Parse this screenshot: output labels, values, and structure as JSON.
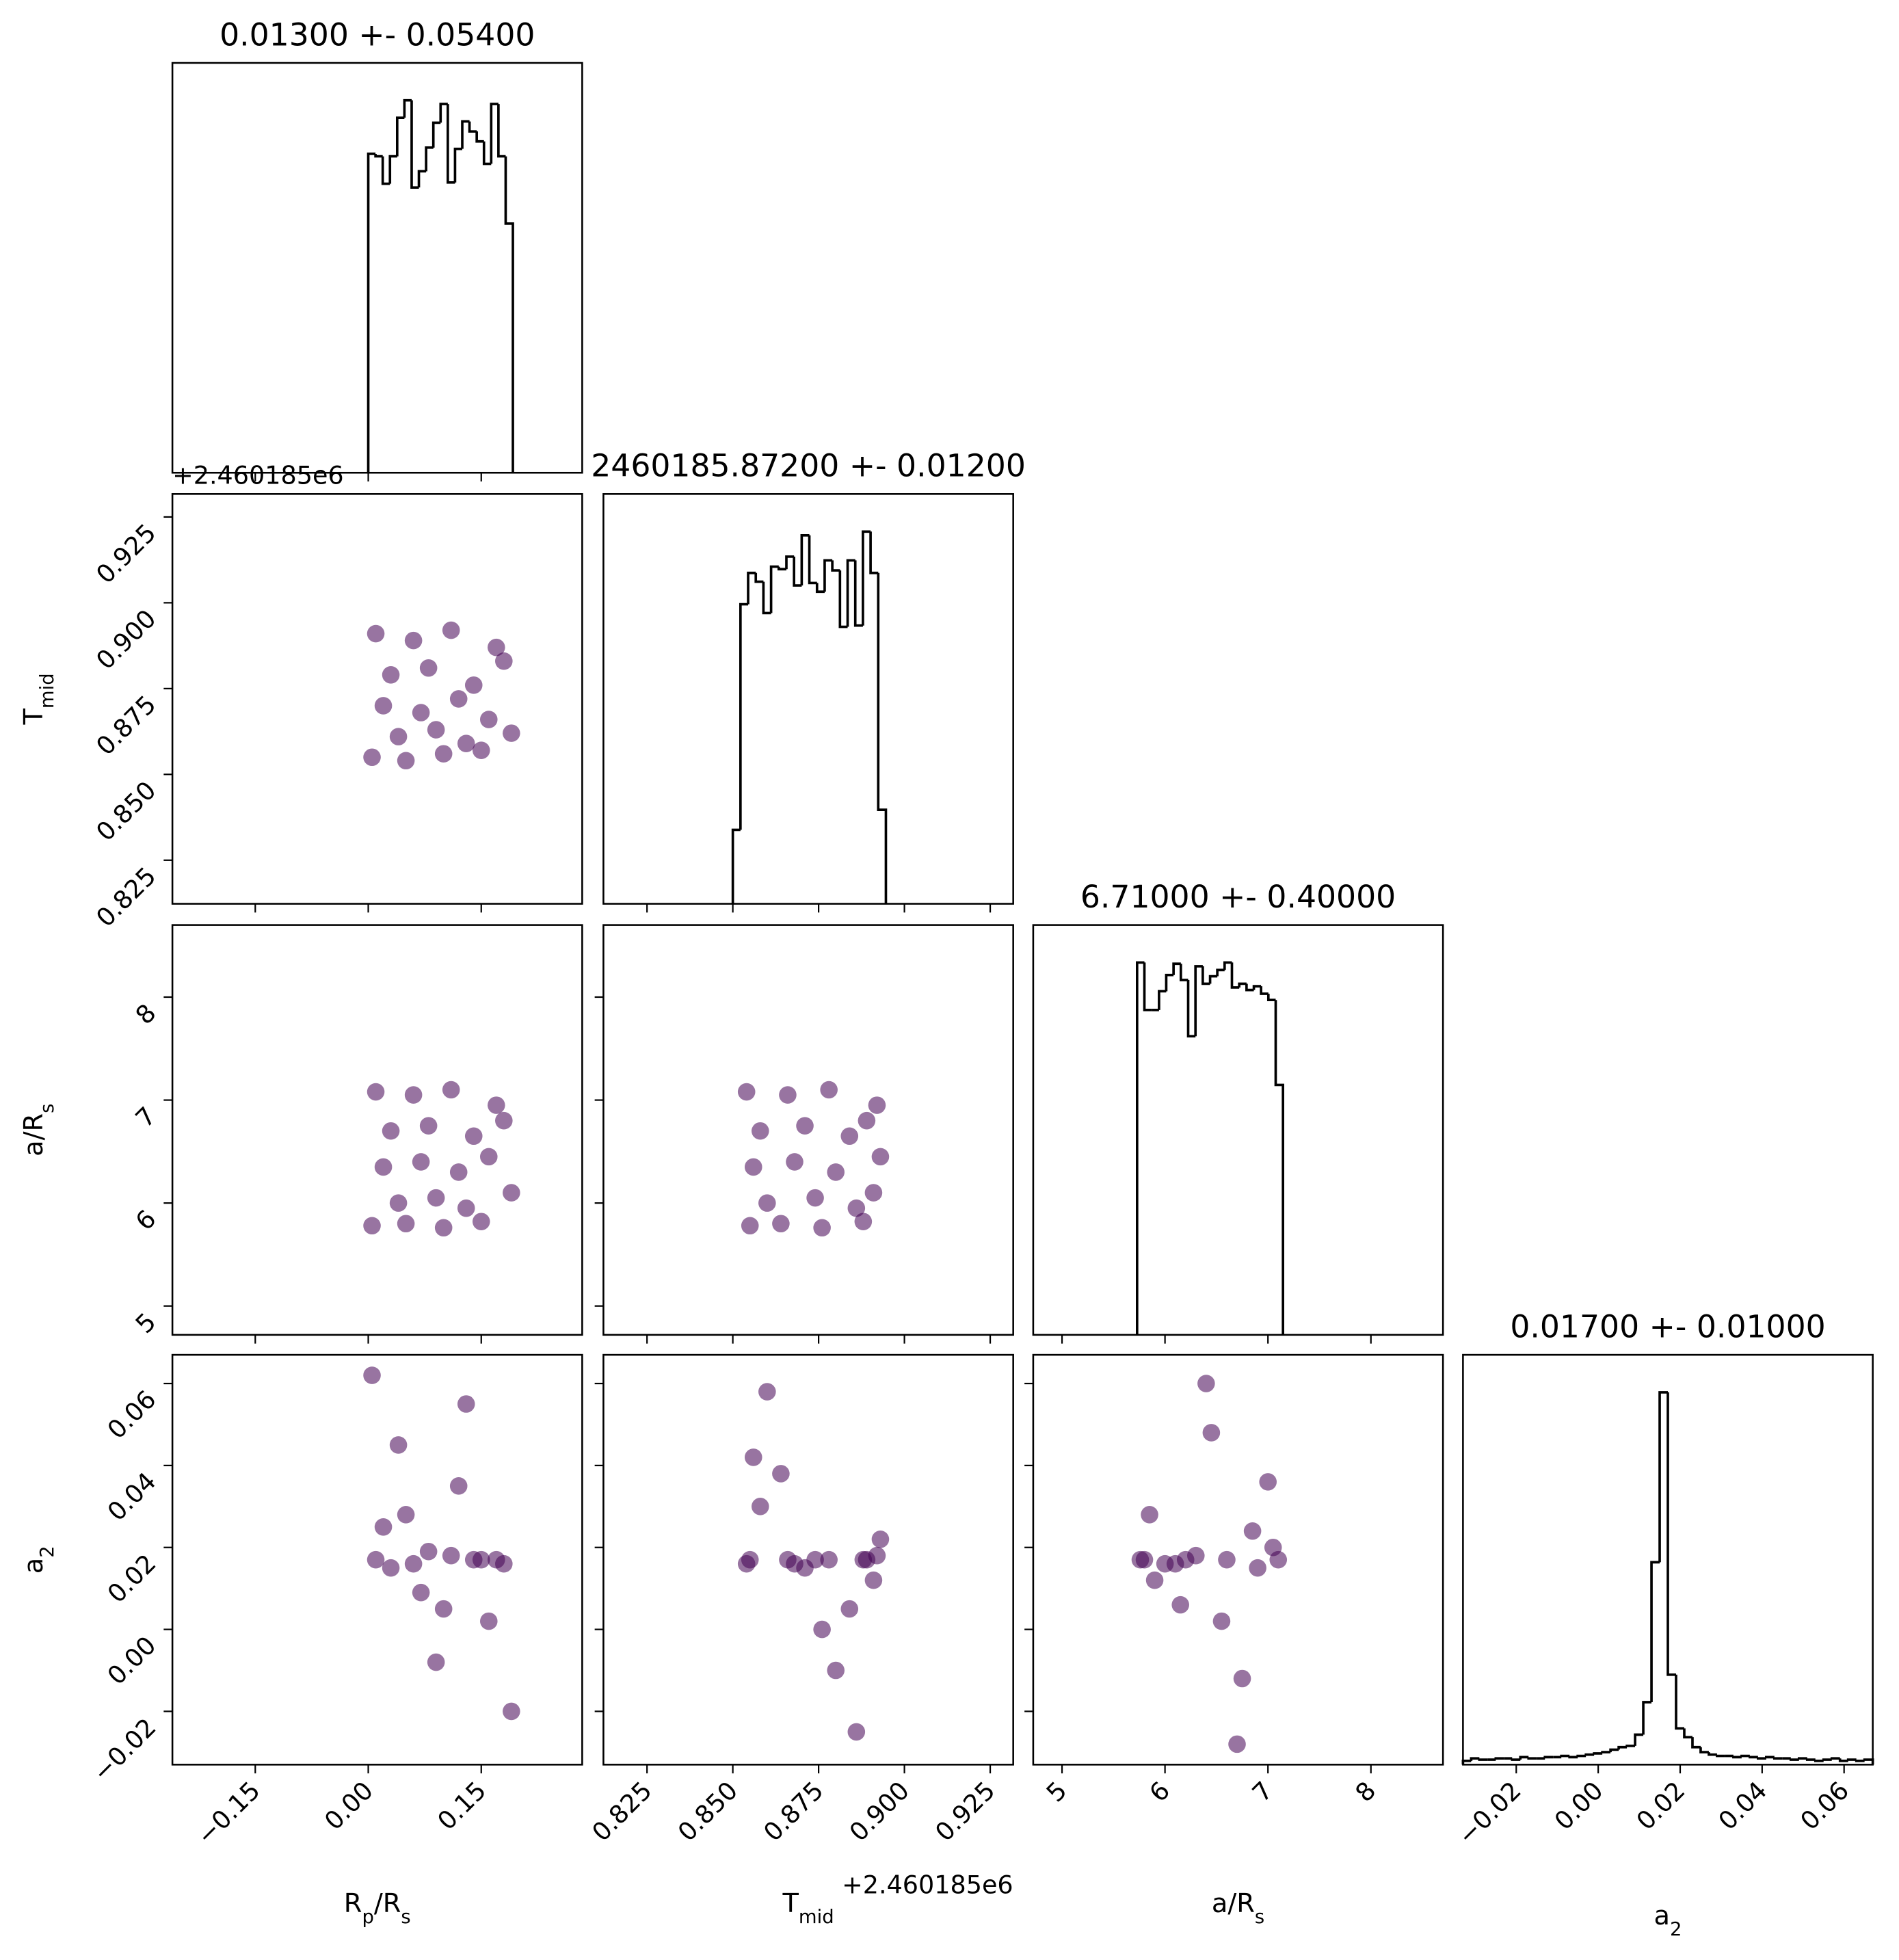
{
  "chart_data": {
    "type": "corner",
    "color": "#440154",
    "hist_color": "#000000",
    "parameters": [
      {
        "label": [
          "R",
          "p",
          "/R",
          "s"
        ],
        "title": "0.01300 +- 0.05400",
        "lim": [
          -0.26,
          0.284
        ],
        "ticks": [
          {
            "value": -0.15,
            "label": "−0.15"
          },
          {
            "value": 0,
            "label": "0.00"
          },
          0.15
        ],
        "hist_ylim": [
          0,
          329
        ],
        "bins": [
          0,
          0.0096,
          0.0192,
          0.0288,
          0.0384,
          0.048,
          0.0576,
          0.0672,
          0.0768,
          0.0864,
          0.096,
          0.1056,
          0.1152,
          0.1248,
          0.1344,
          0.144,
          0.1536,
          0.1632,
          0.1728,
          0.1824,
          0.192
        ],
        "counts": [
          256,
          254,
          232,
          254,
          285,
          299,
          229,
          242,
          261,
          281,
          296,
          233,
          260,
          282,
          274,
          266,
          248,
          296,
          254,
          200
        ]
      },
      {
        "label": [
          "T",
          "mid"
        ],
        "title": "2460185.87200 +- 0.01200",
        "offset": "+2.460185e6",
        "lim": [
          0.8123,
          0.9317
        ],
        "ticks": [
          0.825,
          {
            "value": 0.85,
            "label": "0.850"
          },
          0.875,
          {
            "value": 0.9,
            "label": "0.900"
          },
          0.925
        ],
        "hist_ylim": [
          0,
          327
        ],
        "bins": [
          0.85,
          0.85223,
          0.85446,
          0.85669,
          0.85892,
          0.86115,
          0.86338,
          0.86561,
          0.86784,
          0.87007,
          0.8723,
          0.87453,
          0.87676,
          0.87899,
          0.88122,
          0.88345,
          0.88568,
          0.88791,
          0.89014,
          0.89237,
          0.8946
        ],
        "counts": [
          59,
          239,
          264,
          257,
          232,
          269,
          267,
          277,
          254,
          294,
          256,
          249,
          274,
          266,
          221,
          274,
          222,
          297,
          264,
          75
        ]
      },
      {
        "label": [
          "a/R",
          "s"
        ],
        "title": "6.71000 +- 0.40000",
        "lim": [
          4.72,
          8.7
        ],
        "ticks": [
          5,
          6,
          7,
          8
        ],
        "hist_ylim": [
          0,
          328
        ],
        "bins": [
          5.729,
          5.8,
          5.871,
          5.942,
          6.012,
          6.083,
          6.154,
          6.225,
          6.296,
          6.367,
          6.438,
          6.508,
          6.579,
          6.65,
          6.721,
          6.792,
          6.863,
          6.933,
          7.004,
          7.075,
          7.146
        ],
        "counts": [
          298,
          260,
          260,
          275,
          288,
          297,
          284,
          239,
          295,
          281,
          287,
          292,
          298,
          278,
          281,
          276,
          279,
          273,
          268,
          200
        ]
      },
      {
        "label": [
          "a",
          "2"
        ],
        "title": "0.01700 +- 0.01000",
        "lim": [
          -0.033,
          0.067
        ],
        "ticks": [
          {
            "value": -0.02,
            "label": "−0.02"
          },
          {
            "value": 0,
            "label": "0.00"
          },
          0.02,
          0.04,
          0.06
        ],
        "hist_ylim": [
          0,
          328
        ],
        "bins": [
          -0.033,
          -0.031,
          -0.029,
          -0.027,
          -0.025,
          -0.023,
          -0.021,
          -0.019,
          -0.017,
          -0.015,
          -0.013,
          -0.011,
          -0.009,
          -0.007,
          -0.005,
          -0.003,
          -0.001,
          0.001,
          0.003,
          0.005,
          0.007,
          0.009,
          0.011,
          0.013,
          0.015,
          0.017,
          0.019,
          0.021,
          0.023,
          0.025,
          0.027,
          0.029,
          0.031,
          0.033,
          0.035,
          0.037,
          0.039,
          0.041,
          0.043,
          0.045,
          0.047,
          0.049,
          0.051,
          0.053,
          0.055,
          0.057,
          0.059,
          0.061,
          0.063,
          0.065,
          0.067
        ],
        "counts": [
          3,
          5,
          4,
          4,
          5,
          5,
          4,
          6,
          5,
          5,
          6,
          6,
          7,
          6,
          7,
          8,
          9,
          10,
          12,
          14,
          15,
          24,
          50,
          162,
          298,
          72,
          29,
          22,
          14,
          10,
          8,
          7,
          7,
          6,
          7,
          6,
          5,
          6,
          5,
          5,
          4,
          5,
          4,
          3,
          4,
          5,
          3,
          4,
          3,
          4
        ]
      }
    ],
    "pairs": [
      {
        "x": [
          0.01,
          0.06,
          0.11,
          0.17,
          0.03,
          0.08,
          0.14,
          0.18,
          0.02,
          0.07,
          0.12,
          0.16,
          0.04,
          0.09,
          0.13,
          0.19,
          0.005,
          0.05,
          0.1,
          0.15
        ],
        "y": [
          0.891,
          0.889,
          0.892,
          0.887,
          0.879,
          0.881,
          0.876,
          0.883,
          0.87,
          0.868,
          0.872,
          0.866,
          0.861,
          0.863,
          0.859,
          0.862,
          0.855,
          0.854,
          0.856,
          0.857
        ]
      },
      {
        "x": [
          0.01,
          0.06,
          0.11,
          0.17,
          0.03,
          0.08,
          0.14,
          0.18,
          0.02,
          0.07,
          0.12,
          0.16,
          0.04,
          0.09,
          0.13,
          0.19,
          0.005,
          0.05,
          0.1,
          0.15
        ],
        "y": [
          7.08,
          7.05,
          7.1,
          6.95,
          6.7,
          6.75,
          6.65,
          6.8,
          6.35,
          6.4,
          6.3,
          6.45,
          6.0,
          6.05,
          5.95,
          6.1,
          5.78,
          5.8,
          5.76,
          5.82
        ]
      },
      {
        "x": [
          0.854,
          0.866,
          0.878,
          0.892,
          0.858,
          0.871,
          0.884,
          0.889,
          0.856,
          0.868,
          0.88,
          0.893,
          0.86,
          0.874,
          0.886,
          0.891,
          0.855,
          0.864,
          0.876,
          0.888
        ],
        "y": [
          7.08,
          7.05,
          7.1,
          6.95,
          6.7,
          6.75,
          6.65,
          6.8,
          6.35,
          6.4,
          6.3,
          6.45,
          6.0,
          6.05,
          5.95,
          6.1,
          5.78,
          5.8,
          5.76,
          5.82
        ]
      },
      {
        "x": [
          0.01,
          0.06,
          0.11,
          0.17,
          0.03,
          0.08,
          0.14,
          0.18,
          0.02,
          0.07,
          0.12,
          0.16,
          0.04,
          0.09,
          0.13,
          0.19,
          0.005,
          0.05,
          0.1,
          0.15
        ],
        "y": [
          0.017,
          0.016,
          0.018,
          0.017,
          0.015,
          0.019,
          0.017,
          0.016,
          0.025,
          0.009,
          0.035,
          0.002,
          0.045,
          -0.008,
          0.055,
          -0.02,
          0.062,
          0.028,
          0.005,
          0.017
        ]
      },
      {
        "x": [
          0.854,
          0.866,
          0.878,
          0.892,
          0.858,
          0.871,
          0.884,
          0.889,
          0.856,
          0.868,
          0.88,
          0.893,
          0.86,
          0.874,
          0.886,
          0.891,
          0.855,
          0.864,
          0.876,
          0.888
        ],
        "y": [
          0.016,
          0.017,
          0.017,
          0.018,
          0.03,
          0.015,
          0.005,
          0.017,
          0.042,
          0.016,
          -0.01,
          0.022,
          0.058,
          0.017,
          -0.025,
          0.012,
          0.017,
          0.038,
          0.0,
          0.017
        ]
      },
      {
        "x": [
          5.76,
          6.0,
          6.3,
          6.6,
          6.9,
          7.1,
          5.85,
          6.15,
          6.45,
          6.75,
          7.0,
          5.8,
          6.1,
          6.4,
          6.7,
          7.05,
          5.9,
          6.2,
          6.55,
          6.85
        ],
        "y": [
          0.017,
          0.016,
          0.018,
          0.017,
          0.015,
          0.017,
          0.028,
          0.006,
          0.048,
          -0.012,
          0.036,
          0.017,
          0.016,
          0.06,
          -0.028,
          0.02,
          0.012,
          0.017,
          0.002,
          0.024
        ]
      }
    ]
  }
}
